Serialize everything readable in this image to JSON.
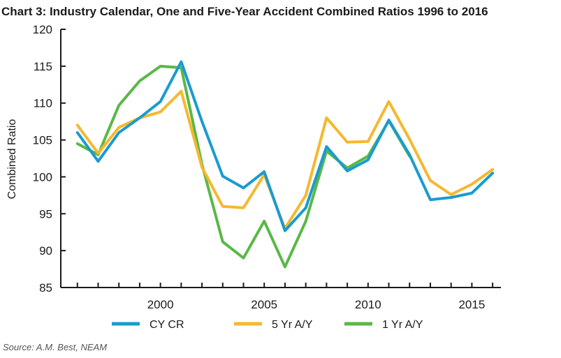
{
  "chart_data": {
    "type": "line",
    "title": "Chart 3: Industry Calendar, One and Five-Year Accident Combined Ratios 1996 to 2016",
    "xlabel": "",
    "ylabel": "Combined Ratio",
    "xlim": [
      1995.2,
      2016.4
    ],
    "ylim": [
      85,
      120
    ],
    "yticks": [
      85,
      90,
      95,
      100,
      105,
      110,
      115,
      120
    ],
    "xtick_labels": [
      2000,
      2005,
      2010,
      2015
    ],
    "x": [
      1996,
      1997,
      1998,
      1999,
      2000,
      2001,
      2002,
      2003,
      2004,
      2005,
      2006,
      2007,
      2008,
      2009,
      2010,
      2011,
      2012,
      2013,
      2014,
      2015,
      2016
    ],
    "series": [
      {
        "name": "CY CR",
        "color": "#1a9bd0",
        "values": [
          106.0,
          102.1,
          106.0,
          108.0,
          110.2,
          115.6,
          107.5,
          100.1,
          98.5,
          100.7,
          92.7,
          95.8,
          104.1,
          100.8,
          102.3,
          107.7,
          103.0,
          96.9,
          97.2,
          97.8,
          100.5
        ]
      },
      {
        "name": "5 Yr A/Y",
        "color": "#f5b82e",
        "values": [
          107.0,
          103.2,
          106.7,
          108.0,
          108.8,
          111.6,
          101.3,
          96.0,
          95.8,
          100.3,
          93.0,
          97.5,
          108.0,
          104.7,
          104.8,
          110.2,
          105.1,
          99.5,
          97.6,
          99.0,
          101.0
        ]
      },
      {
        "name": "1 Yr A/Y",
        "color": "#5ab846",
        "values": [
          104.5,
          103.0,
          109.7,
          113.0,
          115.0,
          114.8,
          101.7,
          91.2,
          89.0,
          94.0,
          87.8,
          94.0,
          103.5,
          101.2,
          102.8,
          107.6,
          102.8,
          null,
          null,
          null,
          null
        ]
      }
    ],
    "legend_position": "bottom",
    "grid": false
  },
  "source": "Source: A.M. Best, NEAM"
}
